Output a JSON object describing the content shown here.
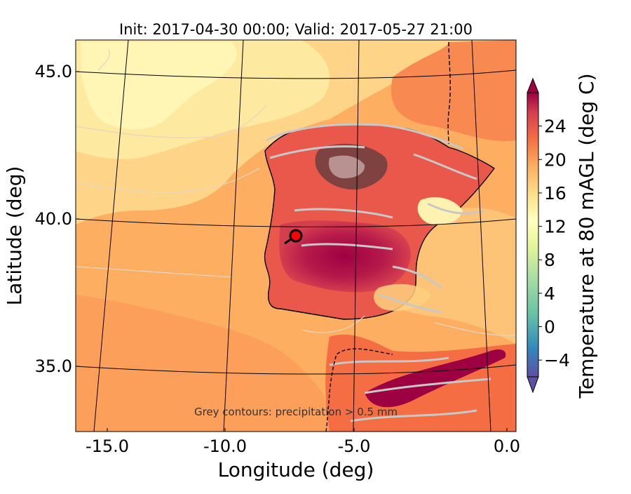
{
  "title": "Init: 2017-04-30 00:00; Valid: 2017-05-27 21:00",
  "axes": {
    "xlabel": "Longitude (deg)",
    "ylabel": "Latitude (deg)",
    "xticks": [
      "-15.0",
      "-10.0",
      "-5.0",
      "0.0"
    ],
    "yticks": [
      "45.0",
      "40.0",
      "35.0"
    ]
  },
  "note": "Grey contours: precipitation > 0.5 mm",
  "colorbar": {
    "label": "Temperature at 80 mAGL (deg C)",
    "ticks": [
      "24",
      "20",
      "16",
      "12",
      "8",
      "4",
      "0",
      "−4"
    ],
    "min": -6,
    "max": 28
  },
  "colors": {
    "ocean_warm": "#fdae61",
    "ocean_cool": "#fee08b",
    "ocean_pale": "#ffffbf",
    "land_hot": "#9e0142",
    "land_warm": "#d53e4f",
    "cb_low": "#5e4fa2",
    "marker": "#ff0000"
  },
  "marker": {
    "lon": -7.6,
    "lat": 39.3,
    "icon": "location-marker-icon"
  }
}
